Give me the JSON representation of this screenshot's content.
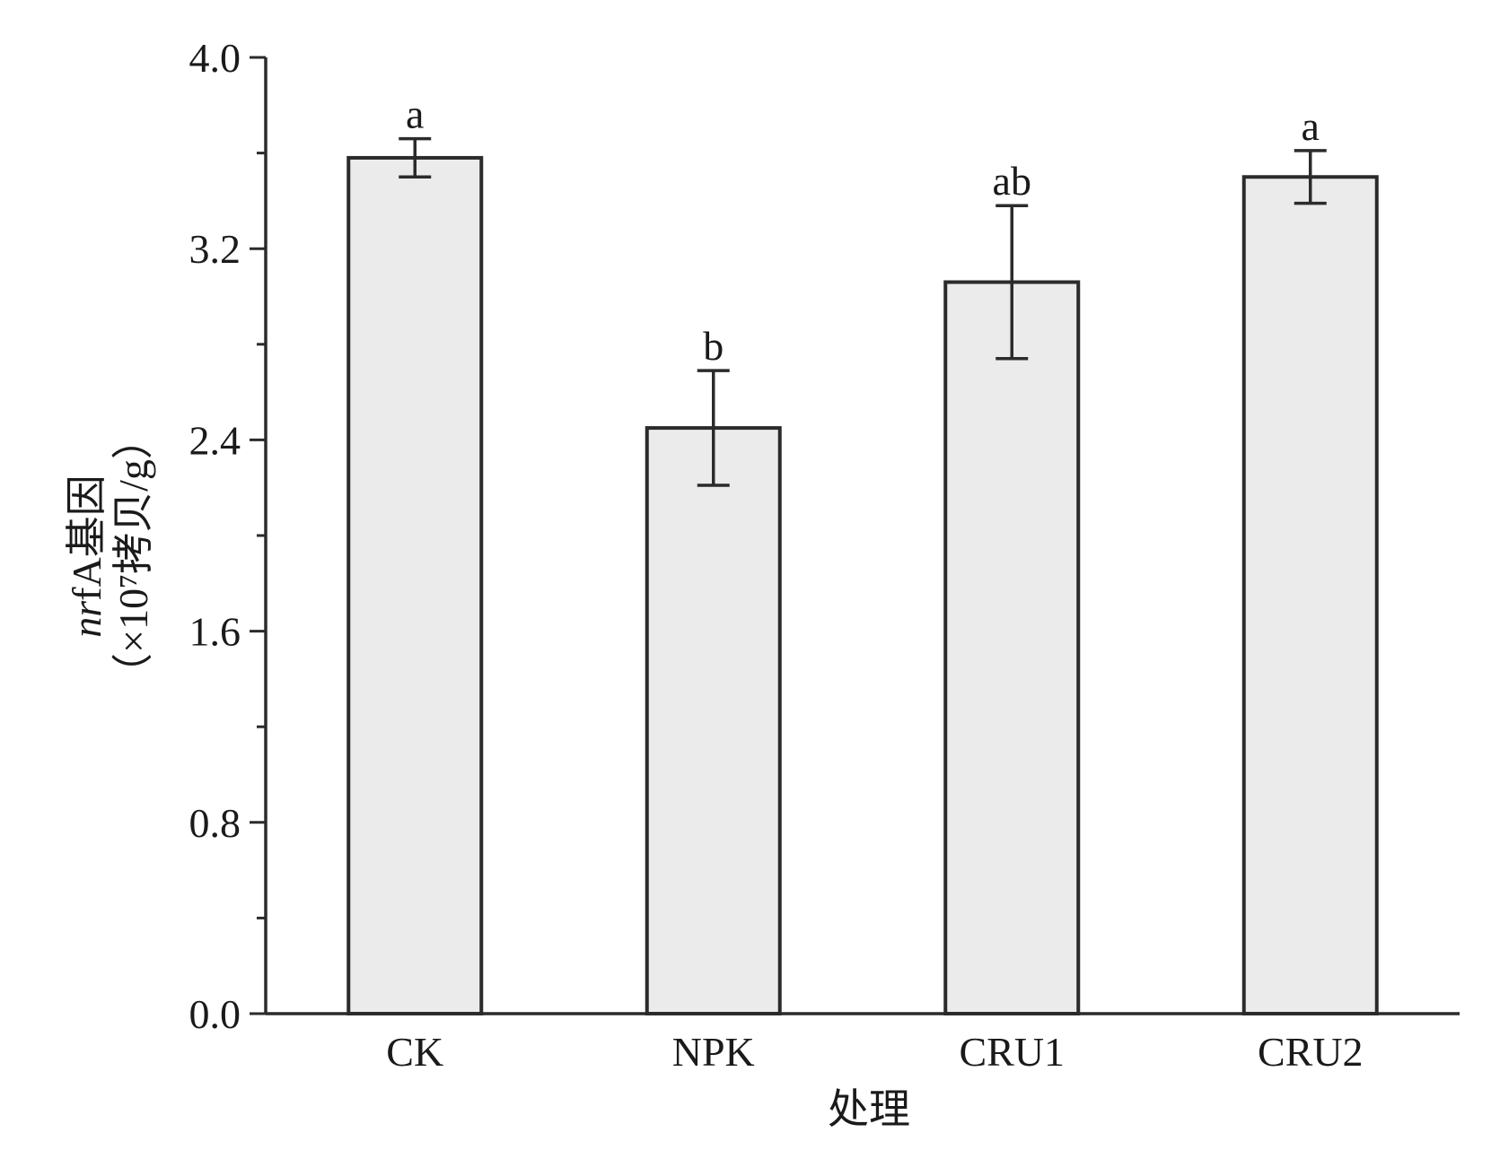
{
  "chart_data": {
    "type": "bar",
    "categories": [
      "CK",
      "NPK",
      "CRU1",
      "CRU2"
    ],
    "values": [
      3.58,
      2.45,
      3.06,
      3.5
    ],
    "errors": [
      0.08,
      0.24,
      0.32,
      0.11
    ],
    "significance": [
      "a",
      "b",
      "ab",
      "a"
    ],
    "xlabel": "处理",
    "ylabel": {
      "prefix": "",
      "gene_italic": "nr",
      "gene_rest": "fA基因",
      "unit_line": "（×10⁷拷贝/g）"
    },
    "ylim": [
      0,
      4.0
    ],
    "yticks": [
      "0.0",
      "0.8",
      "1.6",
      "2.4",
      "3.2",
      "4.0"
    ],
    "ytick_values": [
      0,
      0.8,
      1.6,
      2.4,
      3.2,
      4.0
    ],
    "minor_ytick_values": [
      0.4,
      1.2,
      2.0,
      2.8,
      3.6
    ],
    "colors": {
      "bar_fill": "#ebebeb",
      "bar_stroke": "#2b2b2b",
      "axis": "#2b2b2b"
    },
    "grid": false,
    "legend": "none"
  }
}
